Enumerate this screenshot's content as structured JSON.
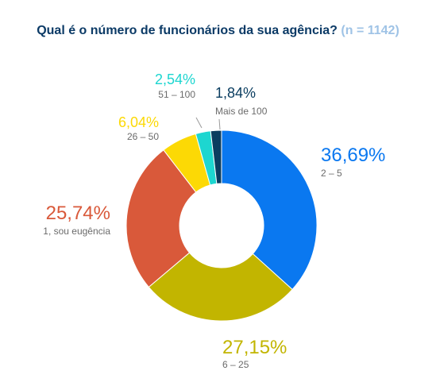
{
  "chart_data": {
    "type": "pie",
    "style": "donut",
    "title": "Qual é o número de funcionários da sua agência?",
    "subtitle": "(n = 1142)",
    "slices": [
      {
        "label": "2 – 5",
        "value": 36.69,
        "display": "36,69%",
        "color": "#0a78f0"
      },
      {
        "label": "6 – 25",
        "value": 27.15,
        "display": "27,15%",
        "color": "#c2b500"
      },
      {
        "label": "1, sou eugência",
        "value": 25.74,
        "display": "25,74%",
        "color": "#d9593a"
      },
      {
        "label": "26 – 50",
        "value": 6.04,
        "display": "6,04%",
        "color": "#fcd905"
      },
      {
        "label": "51 – 100",
        "value": 2.54,
        "display": "2,54%",
        "color": "#1dd6d0"
      },
      {
        "label": "Mais de 100",
        "value": 1.84,
        "display": "1,84%",
        "color": "#0a3d60"
      }
    ]
  }
}
